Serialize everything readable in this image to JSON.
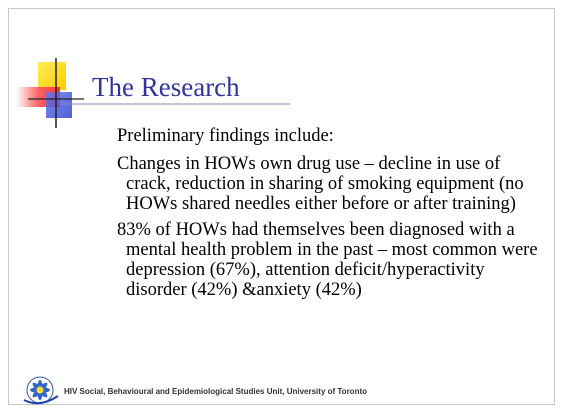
{
  "slide": {
    "title": "The Research",
    "body": {
      "intro": "Preliminary findings include:",
      "bullets": [
        "Changes in HOWs own drug use – decline in use of crack, reduction in sharing of smoking equipment (no HOWs shared needles either before or after training)",
        "83% of HOWs had themselves been diagnosed with a mental health problem in the past – most common were depression (67%), attention deficit/hyperactivity disorder (42%) &anxiety (42%)"
      ]
    },
    "footer": "HIV Social, Behavioural and Epidemiological Studies Unit,  University of Toronto"
  }
}
